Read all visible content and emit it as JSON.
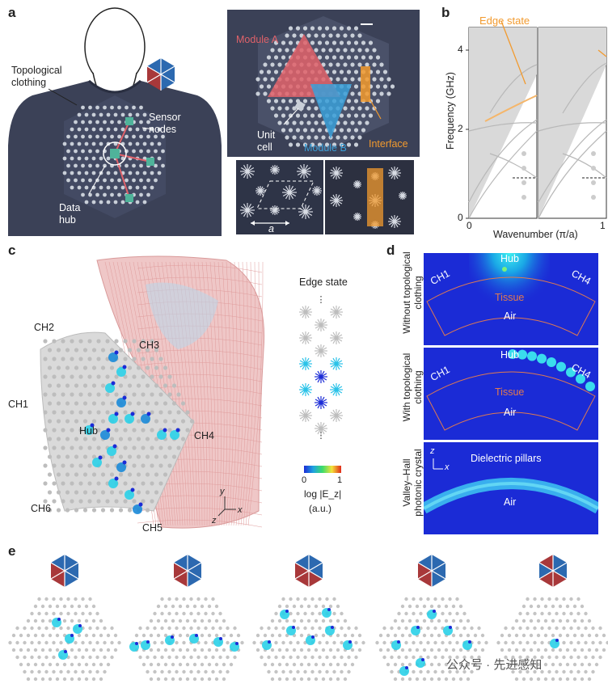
{
  "panel_labels": {
    "a": "a",
    "b": "b",
    "c": "c",
    "d": "d",
    "e": "e"
  },
  "panel_a": {
    "topological_clothing": "Topological\nclothing",
    "sensor_nodes": "Sensor\nnodes",
    "data_hub": "Data\nhub",
    "module_a": "Module A",
    "module_b": "Module B",
    "unit_cell": "Unit\ncell",
    "interface": "Interface",
    "lattice_constant": "a"
  },
  "panel_b": {
    "edge_state": "Edge state",
    "ylabel": "Frequency (GHz)",
    "xlabel": "Wavenumber (π/a)",
    "yticks": [
      "0",
      "2",
      "4"
    ],
    "xticks": [
      "0",
      "1"
    ]
  },
  "panel_c": {
    "channels": [
      "CH1",
      "CH2",
      "CH3",
      "CH4",
      "CH5",
      "CH6"
    ],
    "hub": "Hub",
    "edge_state": "Edge state",
    "colorbar_min": "0",
    "colorbar_max": "1",
    "colorbar_label": "log |E_z|",
    "colorbar_unit": "(a.u.)",
    "axis_y": "y",
    "axis_x": "x",
    "axis_z": "z"
  },
  "panel_d": {
    "row1_side": "Without topological\nclothing",
    "row2_side": "With topological\nclothing",
    "row3_side": "Valley–Hall\nphotonic crystal",
    "hub": "Hub",
    "ch1": "CH1",
    "ch4": "CH4",
    "tissue": "Tissue",
    "air": "Air",
    "dielectric_pillars": "Dielectric pillars",
    "axis_z": "z",
    "axis_x": "x"
  },
  "watermark": "公众号 · 先进感知",
  "colors": {
    "shirt": "#3b4157",
    "module_a": "#e0626a",
    "module_b": "#3a9fd8",
    "interface": "#f29a2e",
    "field_bg": "#1b2bd6",
    "hex_red": "#a8383a",
    "hex_blue": "#2c69b0"
  }
}
